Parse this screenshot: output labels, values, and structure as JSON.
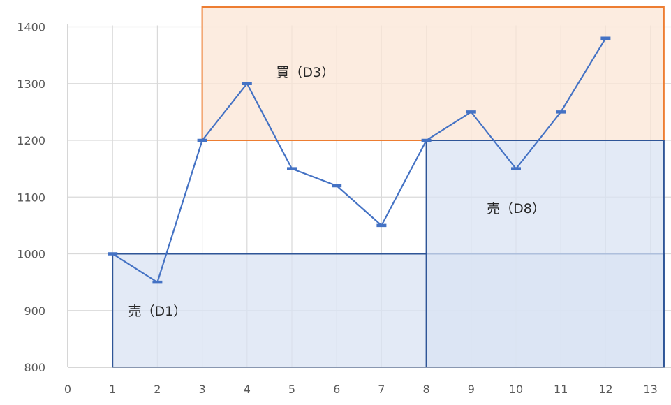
{
  "chart_data": {
    "type": "line",
    "title": "",
    "xlabel": "",
    "ylabel": "",
    "xlim": [
      0,
      13
    ],
    "ylim": [
      800,
      1400
    ],
    "x_ticks": [
      0,
      1,
      2,
      3,
      4,
      5,
      6,
      7,
      8,
      9,
      10,
      11,
      12,
      13
    ],
    "y_ticks": [
      800,
      900,
      1000,
      1100,
      1200,
      1300,
      1400
    ],
    "grid": true,
    "legend": "none",
    "series": [
      {
        "x": [
          1,
          2,
          3,
          4,
          5,
          6,
          7,
          8,
          9,
          10,
          11,
          12
        ],
        "values": [
          1000,
          950,
          1200,
          1300,
          1150,
          1120,
          1050,
          1200,
          1250,
          1150,
          1250,
          1380
        ],
        "color": "#4472C4",
        "marker": "dash"
      }
    ],
    "regions": [
      {
        "label": "買（D3）",
        "x_start": 3,
        "x_end": 13.3,
        "y_start": 1200,
        "y_end": 1440,
        "fill": "#FBE5D6",
        "stroke": "#ED7D31"
      },
      {
        "label": "売（D1）",
        "x_start": 1,
        "x_end": 13.3,
        "y_start": 800,
        "y_end": 1000,
        "fill": "#DAE3F3",
        "stroke": "#2F5597"
      },
      {
        "label": "売（D8）",
        "x_start": 8,
        "x_end": 13.3,
        "y_start": 800,
        "y_end": 1200,
        "fill": "#DAE3F3",
        "stroke": "#2F5597"
      }
    ]
  }
}
